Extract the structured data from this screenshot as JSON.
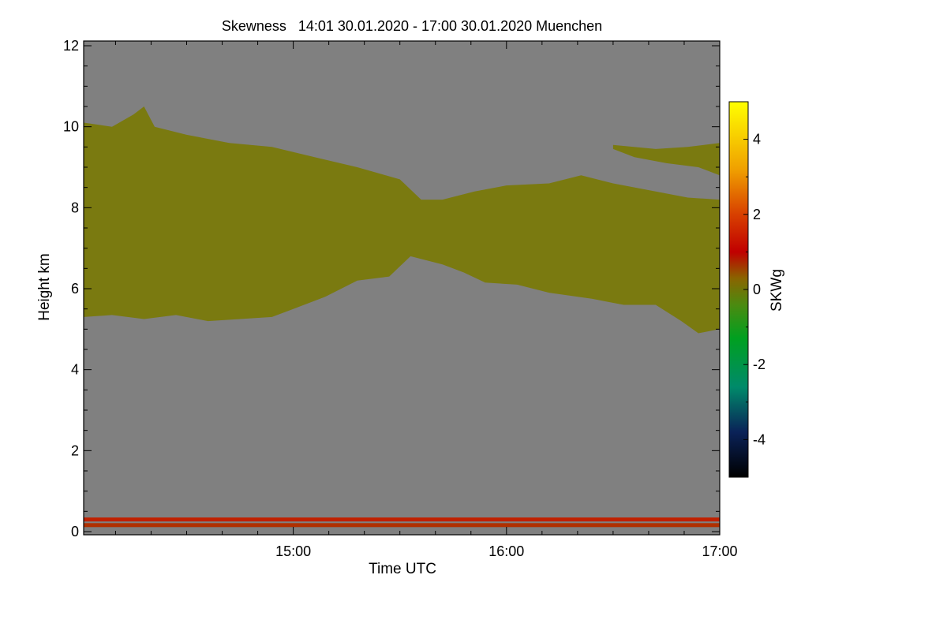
{
  "chart_data": {
    "type": "heatmap",
    "title": "Skewness   14:01 30.01.2020 - 17:00 30.01.2020 Muenchen",
    "xlabel": "Time UTC",
    "ylabel": "Height km",
    "x_range_hours": [
      14.017,
      17.0
    ],
    "x_ticks": [
      {
        "value": 15.0,
        "label": "15:00"
      },
      {
        "value": 16.0,
        "label": "16:00"
      },
      {
        "value": 17.0,
        "label": "17:00"
      }
    ],
    "y_range_km": [
      0,
      12
    ],
    "y_ticks": [
      {
        "value": 0,
        "label": "0"
      },
      {
        "value": 2,
        "label": "2"
      },
      {
        "value": 4,
        "label": "4"
      },
      {
        "value": 6,
        "label": "6"
      },
      {
        "value": 8,
        "label": "8"
      },
      {
        "value": 10,
        "label": "10"
      },
      {
        "value": 12,
        "label": "12"
      }
    ],
    "colorbar": {
      "label": "SKWg",
      "range": [
        -5,
        5
      ],
      "ticks": [
        {
          "value": 4,
          "label": "4"
        },
        {
          "value": 2,
          "label": "2"
        },
        {
          "value": 0,
          "label": "0"
        },
        {
          "value": -2,
          "label": "-2"
        },
        {
          "value": -4,
          "label": "-4"
        }
      ],
      "stops": [
        {
          "value": -5,
          "color": "#000000"
        },
        {
          "value": -3.8,
          "color": "#0a2258"
        },
        {
          "value": -2.6,
          "color": "#008a6a"
        },
        {
          "value": -1.3,
          "color": "#00a020"
        },
        {
          "value": -0.4,
          "color": "#4c8a10"
        },
        {
          "value": 0.3,
          "color": "#8a6400"
        },
        {
          "value": 1.0,
          "color": "#c00000"
        },
        {
          "value": 2.0,
          "color": "#d84000"
        },
        {
          "value": 3.2,
          "color": "#f0a000"
        },
        {
          "value": 5,
          "color": "#ffff00"
        }
      ]
    },
    "background_color": "#808080",
    "cloud_layer": {
      "dominant_value": 0.2,
      "color": "#7a7a10",
      "top_km": [
        [
          14.017,
          10.1
        ],
        [
          14.15,
          10.0
        ],
        [
          14.25,
          10.3
        ],
        [
          14.3,
          10.5
        ],
        [
          14.35,
          10.0
        ],
        [
          14.5,
          9.8
        ],
        [
          14.7,
          9.6
        ],
        [
          14.9,
          9.5
        ],
        [
          15.1,
          9.25
        ],
        [
          15.3,
          9.0
        ],
        [
          15.5,
          8.7
        ],
        [
          15.6,
          8.2
        ],
        [
          15.7,
          8.2
        ],
        [
          15.85,
          8.4
        ],
        [
          16.0,
          8.55
        ],
        [
          16.2,
          8.6
        ],
        [
          16.35,
          8.8
        ],
        [
          16.5,
          8.6
        ],
        [
          16.7,
          8.4
        ],
        [
          16.85,
          8.25
        ],
        [
          17.0,
          8.2
        ]
      ],
      "base_km": [
        [
          14.017,
          5.3
        ],
        [
          14.15,
          5.35
        ],
        [
          14.3,
          5.25
        ],
        [
          14.45,
          5.35
        ],
        [
          14.6,
          5.2
        ],
        [
          14.75,
          5.25
        ],
        [
          14.9,
          5.3
        ],
        [
          15.0,
          5.5
        ],
        [
          15.15,
          5.8
        ],
        [
          15.3,
          6.2
        ],
        [
          15.45,
          6.3
        ],
        [
          15.55,
          6.8
        ],
        [
          15.7,
          6.6
        ],
        [
          15.8,
          6.4
        ],
        [
          15.9,
          6.15
        ],
        [
          16.05,
          6.1
        ],
        [
          16.2,
          5.9
        ],
        [
          16.4,
          5.75
        ],
        [
          16.55,
          5.6
        ],
        [
          16.7,
          5.6
        ],
        [
          16.82,
          5.2
        ],
        [
          16.9,
          4.9
        ],
        [
          17.0,
          5.0
        ]
      ]
    },
    "upper_cloud_layer": {
      "color": "#7a7a10",
      "top_km": [
        [
          16.5,
          9.55
        ],
        [
          16.7,
          9.45
        ],
        [
          16.85,
          9.5
        ],
        [
          17.0,
          9.6
        ]
      ],
      "base_km": [
        [
          16.5,
          9.45
        ],
        [
          16.6,
          9.25
        ],
        [
          16.75,
          9.1
        ],
        [
          16.9,
          9.0
        ],
        [
          17.0,
          8.8
        ]
      ]
    },
    "near_surface_bands": [
      {
        "height_km": 0.3,
        "value": 1.0,
        "color": "#c02000"
      },
      {
        "height_km": 0.16,
        "value": 0.8,
        "color": "#b03000"
      }
    ],
    "annotations": []
  }
}
